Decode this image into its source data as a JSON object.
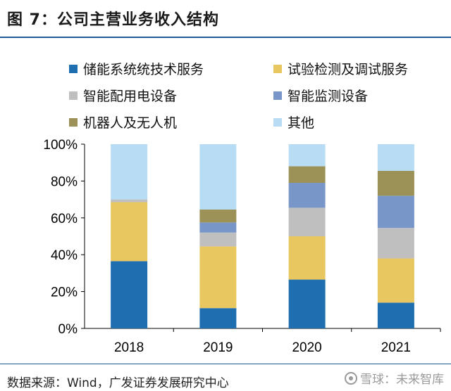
{
  "header": {
    "title": "图 7：公司主营业务收入结构"
  },
  "source": {
    "text": "数据来源：Wind，广发证券发展研究中心"
  },
  "watermark": {
    "text": "雪球：未来智库"
  },
  "chart_data": {
    "type": "bar",
    "stacked": true,
    "title": "",
    "xlabel": "",
    "ylabel": "",
    "ylim": [
      0,
      100
    ],
    "yticks": [
      "0%",
      "20%",
      "40%",
      "60%",
      "80%",
      "100%"
    ],
    "categories": [
      "2018",
      "2019",
      "2020",
      "2021"
    ],
    "series": [
      {
        "name": "储能系统统技术服务",
        "color": "#1f6fb0",
        "values": [
          36.5,
          11,
          26.5,
          14
        ]
      },
      {
        "name": "试验检测及调试服务",
        "color": "#e8c660",
        "values": [
          32,
          33.5,
          23.5,
          24
        ]
      },
      {
        "name": "智能配用电设备",
        "color": "#bfbfbf",
        "values": [
          1.5,
          7.5,
          15.5,
          16.5
        ]
      },
      {
        "name": "智能监测设备",
        "color": "#7996c9",
        "values": [
          0,
          5.5,
          13.5,
          17.5
        ]
      },
      {
        "name": "机器人及无人机",
        "color": "#9c9156",
        "values": [
          0,
          7,
          9,
          13.5
        ]
      },
      {
        "name": "其他",
        "color": "#b8dcf4",
        "values": [
          30,
          35.5,
          12,
          14.5
        ]
      }
    ],
    "legend_position": "top"
  }
}
